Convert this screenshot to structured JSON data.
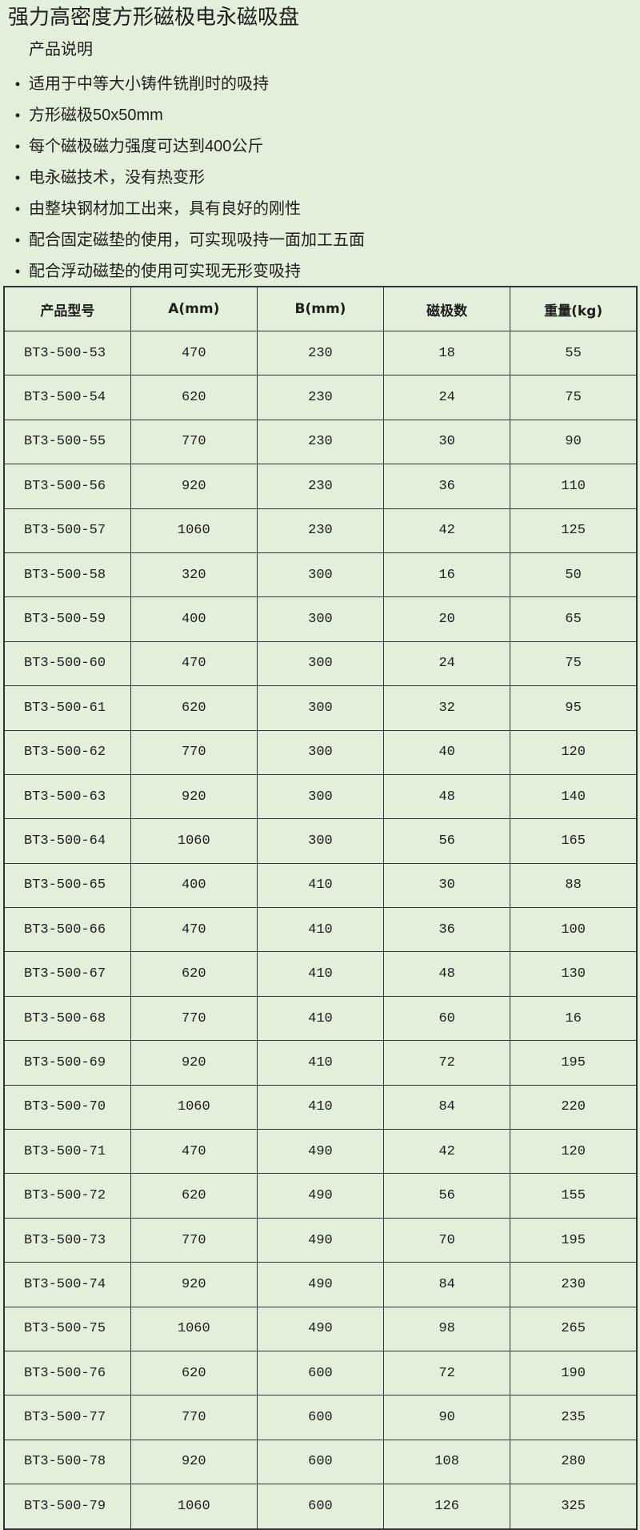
{
  "title": "强力高密度方形磁极电永磁吸盘",
  "subtitle": "产品说明",
  "bullets": [
    "适用于中等大小铸件铣削时的吸持",
    "方形磁极50x50mm",
    "每个磁极磁力强度可达到400公斤",
    "电永磁技术，没有热变形",
    "由整块钢材加工出来，具有良好的刚性",
    "配合固定磁垫的使用，可实现吸持一面加工五面",
    "配合浮动磁垫的使用可实现无形变吸持"
  ],
  "table": {
    "headers": [
      "产品型号",
      "A(mm)",
      "B(mm)",
      "磁极数",
      "重量(kg)"
    ],
    "rows": [
      [
        "BT3-500-53",
        "470",
        "230",
        "18",
        "55"
      ],
      [
        "BT3-500-54",
        "620",
        "230",
        "24",
        "75"
      ],
      [
        "BT3-500-55",
        "770",
        "230",
        "30",
        "90"
      ],
      [
        "BT3-500-56",
        "920",
        "230",
        "36",
        "110"
      ],
      [
        "BT3-500-57",
        "1060",
        "230",
        "42",
        "125"
      ],
      [
        "BT3-500-58",
        "320",
        "300",
        "16",
        "50"
      ],
      [
        "BT3-500-59",
        "400",
        "300",
        "20",
        "65"
      ],
      [
        "BT3-500-60",
        "470",
        "300",
        "24",
        "75"
      ],
      [
        "BT3-500-61",
        "620",
        "300",
        "32",
        "95"
      ],
      [
        "BT3-500-62",
        "770",
        "300",
        "40",
        "120"
      ],
      [
        "BT3-500-63",
        "920",
        "300",
        "48",
        "140"
      ],
      [
        "BT3-500-64",
        "1060",
        "300",
        "56",
        "165"
      ],
      [
        "BT3-500-65",
        "400",
        "410",
        "30",
        "88"
      ],
      [
        "BT3-500-66",
        "470",
        "410",
        "36",
        "100"
      ],
      [
        "BT3-500-67",
        "620",
        "410",
        "48",
        "130"
      ],
      [
        "BT3-500-68",
        "770",
        "410",
        "60",
        "16"
      ],
      [
        "BT3-500-69",
        "920",
        "410",
        "72",
        "195"
      ],
      [
        "BT3-500-70",
        "1060",
        "410",
        "84",
        "220"
      ],
      [
        "BT3-500-71",
        "470",
        "490",
        "42",
        "120"
      ],
      [
        "BT3-500-72",
        "620",
        "490",
        "56",
        "155"
      ],
      [
        "BT3-500-73",
        "770",
        "490",
        "70",
        "195"
      ],
      [
        "BT3-500-74",
        "920",
        "490",
        "84",
        "230"
      ],
      [
        "BT3-500-75",
        "1060",
        "490",
        "98",
        "265"
      ],
      [
        "BT3-500-76",
        "620",
        "600",
        "72",
        "190"
      ],
      [
        "BT3-500-77",
        "770",
        "600",
        "90",
        "235"
      ],
      [
        "BT3-500-78",
        "920",
        "600",
        "108",
        "280"
      ],
      [
        "BT3-500-79",
        "1060",
        "600",
        "126",
        "325"
      ]
    ]
  }
}
